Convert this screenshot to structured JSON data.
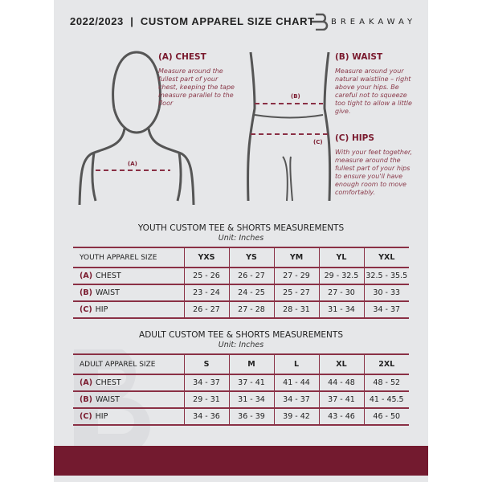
{
  "header": {
    "title": "2022/2023  |  CUSTOM APPAREL SIZE CHART",
    "brand": "BREAKAWAY",
    "watermark": "B"
  },
  "measurements": {
    "chest": {
      "title": "(A) CHEST",
      "marker": "(A)",
      "text": "Measure around the fullest part of your chest, keeping the tape measure parallel to the floor"
    },
    "waist": {
      "title": "(B) WAIST",
      "marker": "(B)",
      "text": "Measure around your natural waistline – right above your hips. Be careful not to squeeze too tight to allow a little give."
    },
    "hips": {
      "title": "(C) HIPS",
      "marker": "(C)",
      "text": "With your feet together, measure around the fullest part of your hips to ensure you'll have enough room to move comfortably."
    }
  },
  "youth": {
    "title": "YOUTH CUSTOM TEE & SHORTS MEASUREMENTS",
    "unit": "Unit: Inches",
    "header": "YOUTH APPAREL SIZE",
    "sizes": [
      "YXS",
      "YS",
      "YM",
      "YL",
      "YXL"
    ],
    "rows": [
      {
        "letter": "(A)",
        "label": "CHEST",
        "values": [
          "25 - 26",
          "26 - 27",
          "27 - 29",
          "29 - 32.5",
          "32.5 - 35.5"
        ]
      },
      {
        "letter": "(B)",
        "label": "WAIST",
        "values": [
          "23 - 24",
          "24 - 25",
          "25 - 27",
          "27 - 30",
          "30 - 33"
        ]
      },
      {
        "letter": "(C)",
        "label": "HIP",
        "values": [
          "26 - 27",
          "27 - 28",
          "28 - 31",
          "31 - 34",
          "34 - 37"
        ]
      }
    ]
  },
  "adult": {
    "title": "ADULT CUSTOM TEE & SHORTS MEASUREMENTS",
    "unit": "Unit: Inches",
    "header": "ADULT APPAREL SIZE",
    "sizes": [
      "S",
      "M",
      "L",
      "XL",
      "2XL"
    ],
    "rows": [
      {
        "letter": "(A)",
        "label": "CHEST",
        "values": [
          "34 - 37",
          "37 - 41",
          "41 - 44",
          "44 - 48",
          "48 - 52"
        ]
      },
      {
        "letter": "(B)",
        "label": "WAIST",
        "values": [
          "29 - 31",
          "31 - 34",
          "34 - 37",
          "37 - 41",
          "41 - 45.5"
        ]
      },
      {
        "letter": "(C)",
        "label": "HIP",
        "values": [
          "34 - 36",
          "36 - 39",
          "39 - 42",
          "43 - 46",
          "46 - 50"
        ]
      }
    ]
  },
  "colors": {
    "accent": "#731a2f",
    "background": "#e6e7e9"
  }
}
